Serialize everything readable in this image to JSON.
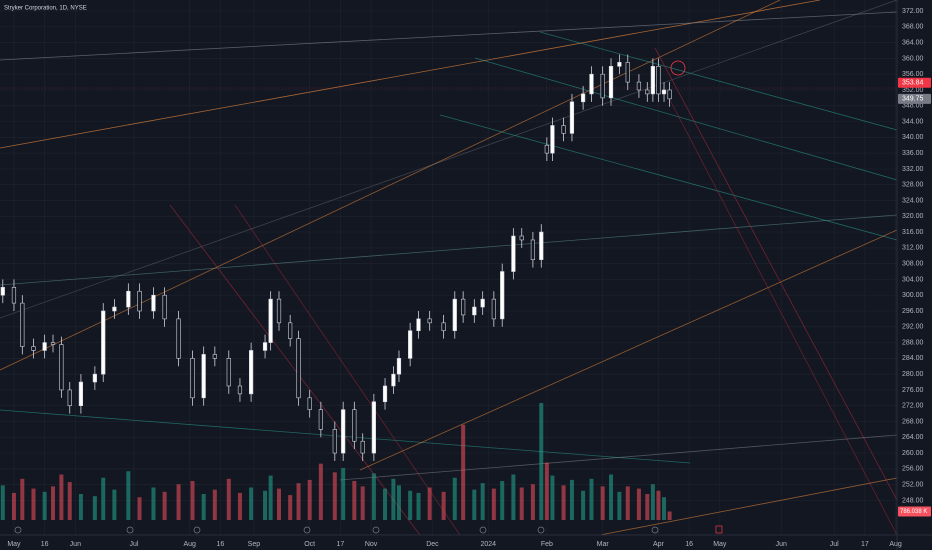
{
  "chart_data": {
    "type": "candlestick",
    "title": "Stryker Corporation, 1D, NYSE",
    "x": [
      -4,
      0,
      3,
      7,
      11,
      14,
      17,
      20,
      24,
      29,
      32,
      36,
      41,
      45,
      50,
      54,
      59,
      64,
      68,
      72,
      77,
      81,
      85,
      90,
      92,
      95,
      99,
      102,
      106,
      110,
      115,
      118,
      122,
      125,
      129,
      133,
      136,
      138,
      142,
      145,
      149,
      154,
      158,
      161,
      165,
      168,
      172,
      175,
      179,
      182,
      186,
      189,
      191,
      193,
      197,
      200,
      204,
      207,
      211,
      214,
      217,
      220,
      224,
      227,
      229,
      231,
      233,
      235
    ],
    "open": [
      300,
      302,
      298,
      287,
      286,
      288,
      287.5,
      276,
      272,
      278,
      280,
      296,
      297,
      301,
      296,
      300,
      294,
      284,
      274,
      285,
      284,
      277,
      275,
      286,
      288,
      299,
      293,
      289,
      274,
      271,
      266,
      260,
      271,
      263,
      260,
      273,
      277,
      280,
      284,
      291,
      294,
      293,
      291,
      299,
      295,
      297,
      299,
      294,
      306,
      315,
      314,
      309,
      338,
      336,
      343,
      341,
      349,
      351,
      356,
      350,
      358,
      359,
      354,
      352,
      351,
      358,
      351,
      352
    ],
    "high": [
      304,
      304,
      300,
      289,
      290,
      290,
      289.5,
      278,
      280,
      282,
      298,
      299,
      303,
      303,
      302,
      302,
      296,
      286,
      287,
      287,
      286,
      279,
      288,
      290,
      301,
      301,
      295,
      291,
      276,
      273,
      268,
      273,
      273,
      265,
      275,
      279,
      282,
      286,
      293,
      296,
      296,
      295,
      301,
      301,
      299,
      301,
      301,
      308,
      317,
      317,
      316,
      318,
      340,
      345,
      345,
      351,
      353,
      358,
      358,
      360,
      361,
      361,
      356,
      354,
      360,
      360,
      354,
      354
    ],
    "low": [
      298,
      296,
      285,
      284,
      284,
      285.5,
      274,
      270,
      270,
      276,
      278,
      294,
      295,
      294,
      294,
      292,
      282,
      272,
      272,
      282,
      275,
      273,
      273,
      284,
      286,
      291,
      287,
      272,
      269,
      264,
      258,
      258,
      261,
      258,
      258,
      271,
      275,
      278,
      282,
      289,
      291,
      289,
      289,
      293,
      293,
      295,
      292,
      292,
      304,
      312,
      307,
      307,
      334,
      334,
      339,
      339,
      347,
      349,
      348,
      348,
      356,
      352,
      350,
      349,
      349,
      349,
      349,
      347.75
    ],
    "close": [
      302,
      298,
      287,
      286,
      288,
      287.5,
      276,
      272,
      278,
      280,
      296,
      297,
      301,
      296,
      300,
      294,
      284,
      274,
      285,
      284,
      277,
      275,
      286,
      288,
      299,
      293,
      289,
      274,
      271,
      266,
      260,
      271,
      263,
      260,
      273,
      277,
      280,
      284,
      291,
      294,
      293,
      291,
      299,
      295,
      297,
      299,
      294,
      306,
      315,
      314,
      309,
      316,
      336,
      343,
      341,
      349,
      351,
      356,
      350,
      358,
      359,
      354,
      352,
      351,
      358,
      351,
      352,
      349.75
    ],
    "volume": [
      3200,
      2500,
      3800,
      2900,
      2600,
      3100,
      4200,
      3500,
      2400,
      2200,
      3900,
      2800,
      4500,
      2100,
      3000,
      2600,
      3300,
      3600,
      2400,
      2800,
      3800,
      2500,
      3000,
      2700,
      4100,
      2900,
      2300,
      3400,
      3700,
      5200,
      4400,
      4800,
      3600,
      3100,
      4300,
      2900,
      3800,
      3200,
      2700,
      2500,
      3000,
      2600,
      3900,
      8800,
      2800,
      3400,
      2900,
      3600,
      4200,
      3000,
      3300,
      10800,
      5300,
      4100,
      3200,
      3700,
      2700,
      3800,
      3100,
      4200,
      2600,
      3100,
      2900,
      2400,
      3300,
      2700,
      2100,
      786.038
    ],
    "up_color": "#ffffff",
    "down_color": "#131722",
    "volume_up_color": "#22ab94",
    "volume_down_color": "#f7525f",
    "xlim": [
      -5,
      316.5
    ],
    "ylim": [
      240,
      374.8
    ],
    "volume_lim": [
      0,
      12000
    ],
    "xticks": [
      {
        "value": 0,
        "label": "May"
      },
      {
        "value": 11,
        "label": "16"
      },
      {
        "value": 22,
        "label": "Jun"
      },
      {
        "value": 43,
        "label": "Jul"
      },
      {
        "value": 63,
        "label": "Aug"
      },
      {
        "value": 74,
        "label": "16"
      },
      {
        "value": 86,
        "label": "Sep"
      },
      {
        "value": 106,
        "label": "Oct"
      },
      {
        "value": 117,
        "label": "17"
      },
      {
        "value": 128,
        "label": "Nov"
      },
      {
        "value": 150,
        "label": "Dec"
      },
      {
        "value": 170,
        "label": "2024"
      },
      {
        "value": 191,
        "label": "Feb"
      },
      {
        "value": 211,
        "label": "Mar"
      },
      {
        "value": 231,
        "label": "Apr"
      },
      {
        "value": 242,
        "label": "16"
      },
      {
        "value": 253,
        "label": "May"
      },
      {
        "value": 275,
        "label": "Jun"
      },
      {
        "value": 294,
        "label": "Jul"
      },
      {
        "value": 305,
        "label": "17"
      },
      {
        "value": 316,
        "label": "Aug"
      }
    ],
    "yticks": [
      {
        "value": 248,
        "label": "248.00"
      },
      {
        "value": 252,
        "label": "252.00"
      },
      {
        "value": 256,
        "label": "256.00"
      },
      {
        "value": 260,
        "label": "260.00"
      },
      {
        "value": 264,
        "label": "264.00"
      },
      {
        "value": 268,
        "label": "268.00"
      },
      {
        "value": 272,
        "label": "272.00"
      },
      {
        "value": 276,
        "label": "276.00"
      },
      {
        "value": 280,
        "label": "280.00"
      },
      {
        "value": 284,
        "label": "284.00"
      },
      {
        "value": 288,
        "label": "288.00"
      },
      {
        "value": 292,
        "label": "292.00"
      },
      {
        "value": 296,
        "label": "296.00"
      },
      {
        "value": 300,
        "label": "300.00"
      },
      {
        "value": 304,
        "label": "304.00"
      },
      {
        "value": 308,
        "label": "308.00"
      },
      {
        "value": 312,
        "label": "312.00"
      },
      {
        "value": 316,
        "label": "316.00"
      },
      {
        "value": 320,
        "label": "320.00"
      },
      {
        "value": 324,
        "label": "324.00"
      },
      {
        "value": 328,
        "label": "328.00"
      },
      {
        "value": 332,
        "label": "332.00"
      },
      {
        "value": 336,
        "label": "336.00"
      },
      {
        "value": 340,
        "label": "340.00"
      },
      {
        "value": 344,
        "label": "344.00"
      },
      {
        "value": 348,
        "label": "348.00"
      },
      {
        "value": 352,
        "label": "352.00"
      },
      {
        "value": 356,
        "label": "356.00"
      },
      {
        "value": 360,
        "label": "360.00"
      },
      {
        "value": 364,
        "label": "364.00"
      },
      {
        "value": 368,
        "label": "368.00"
      },
      {
        "value": 372,
        "label": "372.00"
      }
    ],
    "price_tags": [
      {
        "value": 353.84,
        "label": "353.84",
        "color": "#f23645"
      },
      {
        "value": 349.75,
        "label": "349.75",
        "color": "#787b86"
      }
    ],
    "volume_tag": {
      "value": 786.038,
      "label": "786.038 K",
      "color": "#f7525f"
    },
    "grid": true
  }
}
